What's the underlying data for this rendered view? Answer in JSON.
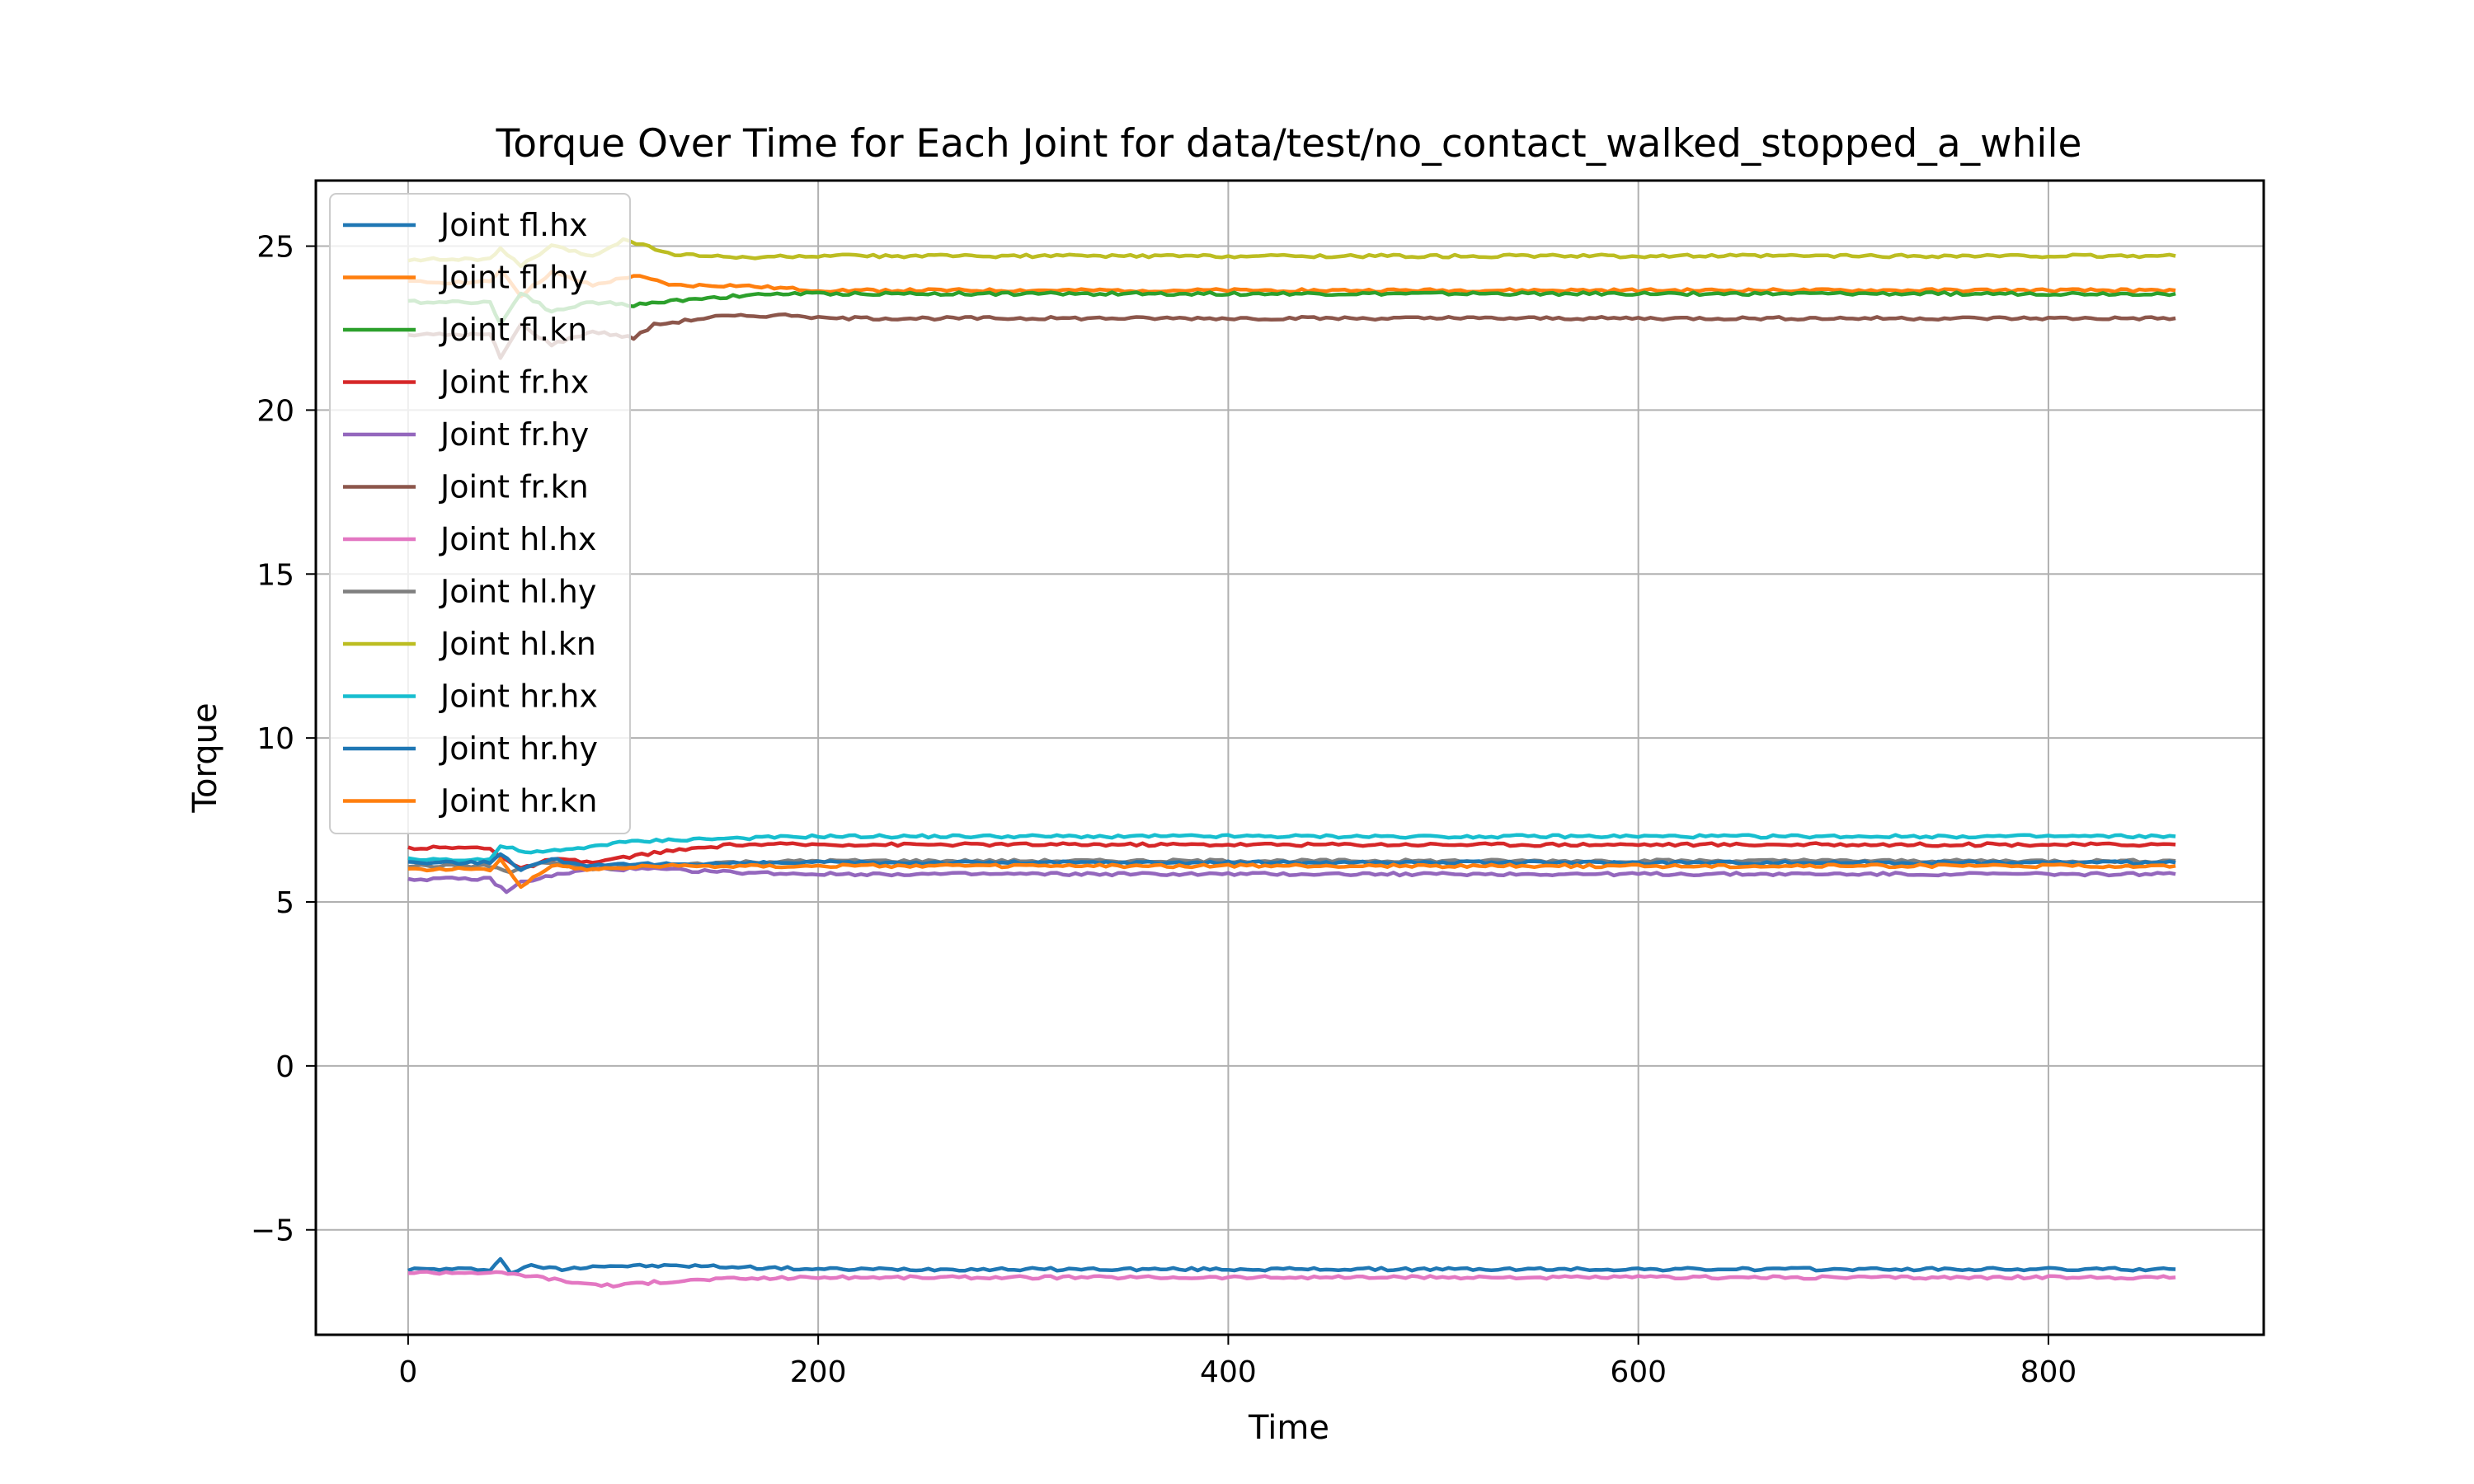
{
  "chart_data": {
    "type": "line",
    "title": "Torque Over Time for Each Joint for data/test/no_contact_walked_stopped_a_while",
    "xlabel": "Time",
    "ylabel": "Torque",
    "xlim": [
      -45,
      905
    ],
    "ylim": [
      -8.2,
      27
    ],
    "xticks": [
      0,
      200,
      400,
      600,
      800
    ],
    "yticks": [
      -5,
      0,
      5,
      10,
      15,
      20,
      25
    ],
    "xtick_labels": [
      "0",
      "200",
      "400",
      "600",
      "800"
    ],
    "ytick_labels": [
      "−5",
      "0",
      "5",
      "10",
      "15",
      "20",
      "25"
    ],
    "grid": true,
    "legend_position": "upper-left",
    "series": [
      {
        "name": "Joint fl.hx",
        "color": "#1f77b4",
        "x": [
          0,
          40,
          45,
          50,
          60,
          75,
          90,
          110,
          140,
          200,
          400,
          600,
          800,
          862
        ],
        "values": [
          -6.2,
          -6.2,
          -5.9,
          -6.3,
          -6.1,
          -6.2,
          -6.1,
          -6.1,
          -6.1,
          -6.2,
          -6.2,
          -6.2,
          -6.2,
          -6.2
        ]
      },
      {
        "name": "Joint fl.hy",
        "color": "#ff7f0e",
        "x": [
          0,
          40,
          45,
          55,
          70,
          90,
          110,
          130,
          160,
          200,
          400,
          600,
          800,
          862
        ],
        "values": [
          23.9,
          23.9,
          24.3,
          23.5,
          24.2,
          23.8,
          24.1,
          23.8,
          23.8,
          23.65,
          23.65,
          23.65,
          23.65,
          23.65
        ]
      },
      {
        "name": "Joint fl.kn",
        "color": "#2ca02c",
        "x": [
          0,
          40,
          45,
          55,
          70,
          90,
          110,
          140,
          180,
          200,
          400,
          600,
          800,
          862
        ],
        "values": [
          23.3,
          23.3,
          22.6,
          23.6,
          23.0,
          23.3,
          23.2,
          23.4,
          23.55,
          23.55,
          23.55,
          23.55,
          23.55,
          23.55
        ]
      },
      {
        "name": "Joint fr.hx",
        "color": "#d62728",
        "x": [
          0,
          40,
          45,
          55,
          70,
          90,
          120,
          160,
          200,
          400,
          600,
          800,
          862
        ],
        "values": [
          6.65,
          6.65,
          6.4,
          6.0,
          6.3,
          6.2,
          6.5,
          6.75,
          6.75,
          6.75,
          6.75,
          6.75,
          6.75
        ]
      },
      {
        "name": "Joint fr.hy",
        "color": "#9467bd",
        "x": [
          0,
          40,
          48,
          55,
          70,
          90,
          120,
          160,
          200,
          400,
          600,
          800,
          862
        ],
        "values": [
          5.7,
          5.7,
          5.3,
          5.6,
          5.8,
          6.0,
          6.0,
          5.9,
          5.85,
          5.85,
          5.85,
          5.85,
          5.85
        ]
      },
      {
        "name": "Joint fr.kn",
        "color": "#8c564b",
        "x": [
          0,
          40,
          45,
          55,
          70,
          90,
          110,
          120,
          150,
          190,
          200,
          400,
          600,
          800,
          862
        ],
        "values": [
          22.3,
          22.3,
          21.6,
          22.6,
          22.0,
          22.4,
          22.2,
          22.6,
          22.85,
          22.9,
          22.8,
          22.8,
          22.8,
          22.8,
          22.8
        ]
      },
      {
        "name": "Joint hl.hx",
        "color": "#e377c2",
        "x": [
          0,
          40,
          60,
          80,
          100,
          120,
          150,
          200,
          400,
          600,
          800,
          862
        ],
        "values": [
          -6.3,
          -6.3,
          -6.4,
          -6.6,
          -6.7,
          -6.6,
          -6.5,
          -6.45,
          -6.45,
          -6.45,
          -6.45,
          -6.45
        ]
      },
      {
        "name": "Joint hl.hy",
        "color": "#7f7f7f",
        "x": [
          0,
          40,
          50,
          65,
          90,
          150,
          200,
          400,
          600,
          800,
          862
        ],
        "values": [
          6.1,
          6.1,
          5.9,
          6.2,
          6.0,
          6.2,
          6.25,
          6.25,
          6.25,
          6.25,
          6.25
        ]
      },
      {
        "name": "Joint hl.kn",
        "color": "#bcbd22",
        "x": [
          0,
          40,
          45,
          55,
          70,
          90,
          105,
          130,
          160,
          200,
          400,
          600,
          800,
          862
        ],
        "values": [
          24.6,
          24.6,
          24.9,
          24.4,
          25.0,
          24.7,
          25.2,
          24.75,
          24.65,
          24.7,
          24.7,
          24.7,
          24.7,
          24.7
        ]
      },
      {
        "name": "Joint hr.hx",
        "color": "#17becf",
        "x": [
          0,
          40,
          45,
          60,
          80,
          100,
          130,
          200,
          400,
          600,
          800,
          862
        ],
        "values": [
          6.3,
          6.3,
          6.7,
          6.5,
          6.6,
          6.8,
          6.9,
          7.0,
          7.0,
          7.0,
          7.0,
          7.0
        ]
      },
      {
        "name": "Joint hr.hy",
        "color": "#1f77b4",
        "x": [
          0,
          40,
          45,
          55,
          70,
          90,
          120,
          200,
          400,
          600,
          800,
          862
        ],
        "values": [
          6.2,
          6.2,
          6.5,
          6.0,
          6.3,
          6.1,
          6.15,
          6.2,
          6.2,
          6.2,
          6.2,
          6.2
        ]
      },
      {
        "name": "Joint hr.kn",
        "color": "#ff7f0e",
        "x": [
          0,
          40,
          45,
          55,
          70,
          90,
          120,
          200,
          400,
          600,
          800,
          862
        ],
        "values": [
          6.0,
          6.0,
          6.3,
          5.5,
          6.1,
          6.0,
          6.1,
          6.1,
          6.1,
          6.1,
          6.1,
          6.1
        ]
      }
    ]
  }
}
